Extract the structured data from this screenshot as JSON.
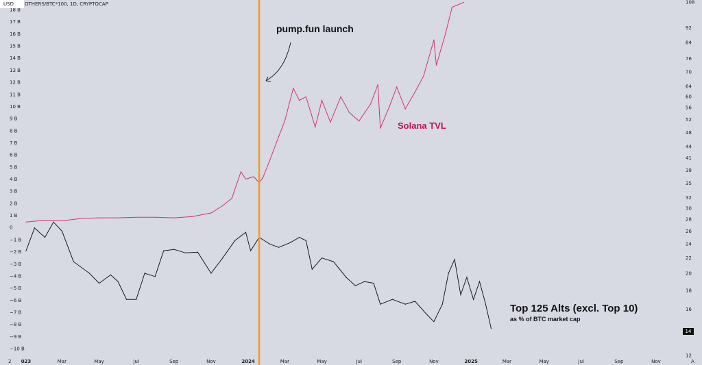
{
  "header": {
    "currency": "USD",
    "symbol_line": "OTHERS/BTC*100, 1D, CRYPTOCAP"
  },
  "annotations": {
    "launch": "pump.fun launch",
    "solana": "Solana TVL",
    "alts_title": "Top 125 Alts (excl. Top 10)",
    "alts_sub": "as % of BTC market cap",
    "last_value": "14",
    "corner_left": "2",
    "corner_right": "A"
  },
  "colors": {
    "solana": "#d4326f",
    "alts": "#1a1a1a",
    "launch_line": "#f59a23",
    "background": "#d7d9e3"
  },
  "chart_data": {
    "type": "line",
    "x_ticks": [
      {
        "label": "023",
        "date": "2023-01-01"
      },
      {
        "label": "Mar",
        "date": "2023-03-01"
      },
      {
        "label": "May",
        "date": "2023-05-01"
      },
      {
        "label": "Jul",
        "date": "2023-07-01"
      },
      {
        "label": "Sep",
        "date": "2023-09-01"
      },
      {
        "label": "Nov",
        "date": "2023-11-01"
      },
      {
        "label": "2024",
        "date": "2024-01-01"
      },
      {
        "label": "Mar",
        "date": "2024-03-01"
      },
      {
        "label": "May",
        "date": "2024-05-01"
      },
      {
        "label": "Jul",
        "date": "2024-07-01"
      },
      {
        "label": "Sep",
        "date": "2024-09-01"
      },
      {
        "label": "Nov",
        "date": "2024-11-01"
      },
      {
        "label": "2025",
        "date": "2025-01-01"
      },
      {
        "label": "Mar",
        "date": "2025-03-01"
      },
      {
        "label": "May",
        "date": "2025-05-01"
      },
      {
        "label": "Jul",
        "date": "2025-07-01"
      },
      {
        "label": "Sep",
        "date": "2025-09-01"
      },
      {
        "label": "Nov",
        "date": "2025-11-01"
      }
    ],
    "left_axis": {
      "ylim": [
        -10,
        18
      ],
      "ticks": [
        18,
        17,
        16,
        15,
        14,
        13,
        12,
        11,
        10,
        9,
        8,
        7,
        6,
        5,
        4,
        3,
        2,
        1,
        0,
        -1,
        -2,
        -3,
        -4,
        -5,
        -6,
        -7,
        -8,
        -9,
        -10
      ],
      "labels": [
        "18 B",
        "17 B",
        "16 B",
        "15 B",
        "14 B",
        "13 B",
        "12 B",
        "11 B",
        "10 B",
        "9 B",
        "8 B",
        "7 B",
        "6 B",
        "5 B",
        "4 B",
        "3 B",
        "2 B",
        "1 B",
        "0",
        "−1 B",
        "−2 B",
        "−3 B",
        "−4 B",
        "−5 B",
        "−6 B",
        "−7 B",
        "−8 B",
        "−9 B",
        "−10 B"
      ]
    },
    "right_axis": {
      "scale": "log",
      "ylim": [
        12,
        108
      ],
      "ticks": [
        108,
        92,
        84,
        76,
        70,
        64,
        60,
        56,
        52,
        48,
        44,
        41,
        38,
        35,
        32,
        30,
        28,
        26,
        24,
        22,
        20,
        18,
        16,
        14,
        12
      ]
    },
    "vertical_marker": {
      "date": "2024-01-19",
      "label": "pump.fun launch"
    },
    "series": [
      {
        "name": "Solana TVL",
        "axis": "left",
        "points": [
          [
            "2023-01-01",
            0.45
          ],
          [
            "2023-02-01",
            0.6
          ],
          [
            "2023-03-01",
            0.55
          ],
          [
            "2023-04-01",
            0.75
          ],
          [
            "2023-05-01",
            0.8
          ],
          [
            "2023-06-01",
            0.8
          ],
          [
            "2023-07-01",
            0.85
          ],
          [
            "2023-08-01",
            0.85
          ],
          [
            "2023-09-01",
            0.8
          ],
          [
            "2023-10-01",
            0.9
          ],
          [
            "2023-11-01",
            1.2
          ],
          [
            "2023-11-20",
            1.8
          ],
          [
            "2023-12-05",
            2.4
          ],
          [
            "2023-12-20",
            4.6
          ],
          [
            "2023-12-28",
            4.0
          ],
          [
            "2024-01-10",
            4.2
          ],
          [
            "2024-01-19",
            3.7
          ],
          [
            "2024-01-25",
            4.1
          ],
          [
            "2024-02-05",
            5.5
          ],
          [
            "2024-02-20",
            7.5
          ],
          [
            "2024-03-01",
            8.8
          ],
          [
            "2024-03-15",
            11.5
          ],
          [
            "2024-03-25",
            10.5
          ],
          [
            "2024-04-05",
            10.8
          ],
          [
            "2024-04-20",
            8.3
          ],
          [
            "2024-05-01",
            10.5
          ],
          [
            "2024-05-15",
            8.7
          ],
          [
            "2024-06-01",
            10.8
          ],
          [
            "2024-06-15",
            9.5
          ],
          [
            "2024-07-01",
            8.8
          ],
          [
            "2024-07-20",
            10.2
          ],
          [
            "2024-08-01",
            11.8
          ],
          [
            "2024-08-05",
            8.2
          ],
          [
            "2024-08-20",
            10.0
          ],
          [
            "2024-09-01",
            11.6
          ],
          [
            "2024-09-15",
            9.8
          ],
          [
            "2024-10-01",
            11.2
          ],
          [
            "2024-10-15",
            12.5
          ],
          [
            "2024-11-01",
            15.5
          ],
          [
            "2024-11-05",
            13.4
          ],
          [
            "2024-11-20",
            16.0
          ],
          [
            "2024-12-01",
            18.2
          ],
          [
            "2024-12-20",
            18.6
          ]
        ]
      },
      {
        "name": "Top 125 Alts (excl. Top 10)",
        "axis": "right",
        "points": [
          [
            "2023-01-01",
            23.0
          ],
          [
            "2023-01-15",
            26.5
          ],
          [
            "2023-02-01",
            25.0
          ],
          [
            "2023-02-15",
            27.5
          ],
          [
            "2023-03-01",
            26.0
          ],
          [
            "2023-03-20",
            21.5
          ],
          [
            "2023-04-15",
            20.0
          ],
          [
            "2023-05-01",
            18.8
          ],
          [
            "2023-05-20",
            19.8
          ],
          [
            "2023-06-01",
            19.0
          ],
          [
            "2023-06-15",
            17.0
          ],
          [
            "2023-07-01",
            17.0
          ],
          [
            "2023-07-15",
            20.0
          ],
          [
            "2023-08-01",
            19.6
          ],
          [
            "2023-08-15",
            23.0
          ],
          [
            "2023-09-01",
            23.2
          ],
          [
            "2023-09-20",
            22.7
          ],
          [
            "2023-10-10",
            22.8
          ],
          [
            "2023-11-01",
            20.0
          ],
          [
            "2023-11-20",
            22.0
          ],
          [
            "2023-12-10",
            24.5
          ],
          [
            "2023-12-28",
            25.8
          ],
          [
            "2024-01-05",
            23.0
          ],
          [
            "2024-01-19",
            25.0
          ],
          [
            "2024-02-05",
            24.0
          ],
          [
            "2024-02-20",
            23.5
          ],
          [
            "2024-03-10",
            24.2
          ],
          [
            "2024-03-25",
            25.0
          ],
          [
            "2024-04-05",
            24.5
          ],
          [
            "2024-04-15",
            20.5
          ],
          [
            "2024-05-01",
            22.0
          ],
          [
            "2024-05-20",
            21.5
          ],
          [
            "2024-06-10",
            19.5
          ],
          [
            "2024-06-25",
            18.5
          ],
          [
            "2024-07-10",
            19.0
          ],
          [
            "2024-07-25",
            18.8
          ],
          [
            "2024-08-05",
            16.5
          ],
          [
            "2024-08-25",
            17.0
          ],
          [
            "2024-09-15",
            16.5
          ],
          [
            "2024-10-01",
            16.8
          ],
          [
            "2024-10-20",
            15.5
          ],
          [
            "2024-11-01",
            14.8
          ],
          [
            "2024-11-15",
            16.5
          ],
          [
            "2024-11-25",
            20.0
          ],
          [
            "2024-12-05",
            21.8
          ],
          [
            "2024-12-15",
            17.5
          ],
          [
            "2024-12-25",
            19.5
          ],
          [
            "2025-01-05",
            17.0
          ],
          [
            "2025-01-15",
            19.0
          ],
          [
            "2025-01-25",
            16.5
          ],
          [
            "2025-02-03",
            14.2
          ]
        ]
      }
    ]
  }
}
